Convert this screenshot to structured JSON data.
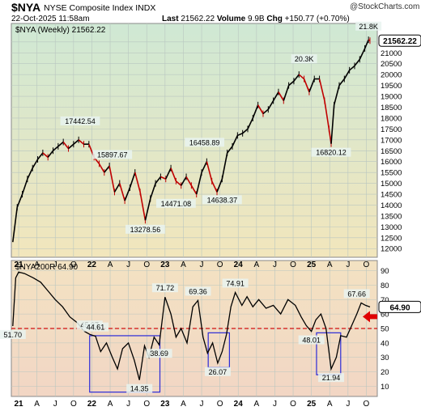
{
  "header": {
    "symbol": "$NYA",
    "name": "NYSE Composite Index",
    "exchange": "INDX",
    "date": "22-Oct-2025 11:58am",
    "last_label": "Last",
    "last": "21562.22",
    "volume_label": "Volume",
    "volume": "9.9B",
    "chg_label": "Chg",
    "chg": "+150.77 (+0.70%)",
    "brand": "@StockCharts.com"
  },
  "chart_data": [
    {
      "type": "line",
      "title": "$NYA (Weekly) 21562.22",
      "y_ticks": [
        12000,
        12500,
        13000,
        13500,
        14000,
        14500,
        15000,
        15500,
        16000,
        16500,
        17000,
        17500,
        18000,
        18500,
        19000,
        19500,
        20000,
        20500,
        21000,
        21500
      ],
      "y_tick_labels": [
        "12000",
        "12500",
        "13000",
        "13500",
        "14000",
        "14500",
        "15000",
        "15500",
        "16000",
        "16500",
        "17000",
        "17500",
        "18000",
        "18500",
        "19000",
        "19500",
        "20000",
        "20500",
        "21000",
        "21500"
      ],
      "ylim": [
        11600,
        22350
      ],
      "x_tick_labels": [
        "21",
        "A",
        "J",
        "O",
        "22",
        "A",
        "J",
        "O",
        "23",
        "A",
        "J",
        "O",
        "24",
        "A",
        "J",
        "O",
        "25",
        "A",
        "J",
        "O"
      ],
      "x": [
        2020.92,
        2020.98,
        2021.05,
        2021.12,
        2021.19,
        2021.26,
        2021.33,
        2021.4,
        2021.47,
        2021.54,
        2021.61,
        2021.68,
        2021.75,
        2021.82,
        2021.89,
        2021.96,
        2022.03,
        2022.1,
        2022.17,
        2022.24,
        2022.31,
        2022.38,
        2022.45,
        2022.52,
        2022.59,
        2022.66,
        2022.73,
        2022.8,
        2022.87,
        2022.94,
        2023.01,
        2023.08,
        2023.15,
        2023.22,
        2023.29,
        2023.36,
        2023.43,
        2023.5,
        2023.57,
        2023.64,
        2023.71,
        2023.78,
        2023.85,
        2023.92,
        2023.99,
        2024.06,
        2024.13,
        2024.2,
        2024.27,
        2024.34,
        2024.41,
        2024.48,
        2024.55,
        2024.62,
        2024.69,
        2024.76,
        2024.83,
        2024.9,
        2024.97,
        2025.04,
        2025.11,
        2025.18,
        2025.24,
        2025.27,
        2025.31,
        2025.38,
        2025.45,
        2025.52,
        2025.59,
        2025.66,
        2025.73,
        2025.78,
        2025.8
      ],
      "values": [
        12300,
        13900,
        14500,
        15200,
        15700,
        16100,
        16400,
        16200,
        16500,
        16700,
        16900,
        16600,
        16800,
        17000,
        16800,
        16800,
        16200,
        15900,
        15500,
        15800,
        14600,
        15000,
        14200,
        14800,
        15500,
        14600,
        13300,
        14300,
        15000,
        15300,
        15200,
        15700,
        15100,
        14900,
        15300,
        14900,
        14500,
        15500,
        16000,
        15100,
        14600,
        15200,
        16400,
        16700,
        17200,
        17300,
        17500,
        18000,
        18600,
        18200,
        18400,
        18800,
        19200,
        18800,
        19500,
        19700,
        20000,
        19800,
        19200,
        19800,
        19800,
        18800,
        17500,
        16820,
        18600,
        19500,
        19800,
        20200,
        20400,
        20700,
        21200,
        21600,
        21560
      ],
      "annotations": [
        {
          "text": "17442.54",
          "x": 2021.84,
          "y": 17442.54
        },
        {
          "text": "15897.67",
          "x": 2022.28,
          "y": 15897.67
        },
        {
          "text": "13278.56",
          "x": 2022.73,
          "y": 13278.56
        },
        {
          "text": "14471.08",
          "x": 2023.15,
          "y": 14471.08
        },
        {
          "text": "16458.89",
          "x": 2023.54,
          "y": 16458.89
        },
        {
          "text": "14638.37",
          "x": 2023.78,
          "y": 14638.37
        },
        {
          "text": "20.3K",
          "x": 2024.9,
          "y": 20300
        },
        {
          "text": "16820.12",
          "x": 2025.27,
          "y": 16820.12
        },
        {
          "text": "21.8K",
          "x": 2025.78,
          "y": 21800
        }
      ],
      "last_value_tag": "21562.22",
      "grid": true
    },
    {
      "type": "line",
      "title": "$NYA200R 64.90",
      "y_ticks": [
        10,
        20,
        30,
        40,
        50,
        60,
        70,
        80,
        90
      ],
      "y_tick_labels": [
        "10",
        "20",
        "30",
        "40",
        "50",
        "60",
        "70",
        "80",
        "90"
      ],
      "ylim": [
        3,
        97
      ],
      "x_tick_labels": [
        "21",
        "A",
        "J",
        "O",
        "22",
        "A",
        "J",
        "O",
        "23",
        "A",
        "J",
        "O",
        "24",
        "A",
        "J",
        "O",
        "25",
        "A",
        "J",
        "O"
      ],
      "x": [
        2020.92,
        2020.96,
        2021.0,
        2021.08,
        2021.2,
        2021.3,
        2021.4,
        2021.5,
        2021.6,
        2021.7,
        2021.8,
        2021.9,
        2021.97,
        2022.05,
        2022.12,
        2022.2,
        2022.28,
        2022.35,
        2022.42,
        2022.5,
        2022.58,
        2022.65,
        2022.72,
        2022.78,
        2022.85,
        2022.92,
        2023.0,
        2023.08,
        2023.15,
        2023.22,
        2023.3,
        2023.38,
        2023.45,
        2023.52,
        2023.58,
        2023.65,
        2023.72,
        2023.78,
        2023.84,
        2023.9,
        2023.96,
        2024.05,
        2024.12,
        2024.2,
        2024.28,
        2024.38,
        2024.48,
        2024.58,
        2024.68,
        2024.78,
        2024.86,
        2024.93,
        2025.0,
        2025.06,
        2025.13,
        2025.2,
        2025.27,
        2025.34,
        2025.4,
        2025.48,
        2025.55,
        2025.62,
        2025.68,
        2025.74,
        2025.8
      ],
      "values": [
        51.7,
        85,
        89,
        88,
        85,
        82,
        76,
        70,
        65,
        58,
        54,
        48,
        45.97,
        44.61,
        34,
        40,
        30,
        22,
        36,
        40,
        28,
        14.35,
        38,
        30,
        44,
        38.69,
        71.72,
        60,
        44,
        50,
        40,
        65,
        69.36,
        44,
        33,
        40,
        26.07,
        34,
        46,
        65,
        74.91,
        66,
        72,
        65,
        70,
        64,
        66,
        60,
        70,
        66,
        58,
        52,
        48.01,
        56,
        60,
        50,
        21.94,
        30,
        45,
        44,
        52,
        60,
        67.66,
        66,
        64.9
      ],
      "reference_line": 50,
      "annotations": [
        {
          "text": "51.70",
          "x": 2020.92,
          "y": 51.7
        },
        {
          "text": "45.97",
          "x": 2021.97,
          "y": 45.97
        },
        {
          "text": "44.61",
          "x": 2022.05,
          "y": 44.61
        },
        {
          "text": "14.35",
          "x": 2022.65,
          "y": 14.35
        },
        {
          "text": "38.69",
          "x": 2022.92,
          "y": 38.69
        },
        {
          "text": "71.72",
          "x": 2023.0,
          "y": 71.72
        },
        {
          "text": "69.36",
          "x": 2023.45,
          "y": 69.36
        },
        {
          "text": "26.07",
          "x": 2023.72,
          "y": 26.07
        },
        {
          "text": "74.91",
          "x": 2023.96,
          "y": 74.91
        },
        {
          "text": "48.01",
          "x": 2025.0,
          "y": 48.01
        },
        {
          "text": "21.94",
          "x": 2025.27,
          "y": 21.94
        },
        {
          "text": "67.66",
          "x": 2025.62,
          "y": 67.66
        }
      ],
      "boxes": [
        {
          "x0": 2021.97,
          "x1": 2022.93,
          "y0": 45,
          "y1": 6
        },
        {
          "x0": 2023.59,
          "x1": 2023.88,
          "y0": 47,
          "y1": 23
        },
        {
          "x0": 2025.07,
          "x1": 2025.4,
          "y0": 47,
          "y1": 18
        }
      ],
      "last_value_tag": "64.90",
      "grid": true
    }
  ],
  "colors": {
    "bg_top": "#cfe8d4",
    "bg_bottom": "#f2e6bc",
    "bg2_top": "#f3e2c2",
    "bg2_bottom": "#f2d6c4",
    "price_up": "#000000",
    "price_down": "#c00000",
    "box": "#2b2bd8",
    "ref_line": "#d01010",
    "arrow": "#e00000",
    "tag_fill": "#e9f3f0"
  }
}
